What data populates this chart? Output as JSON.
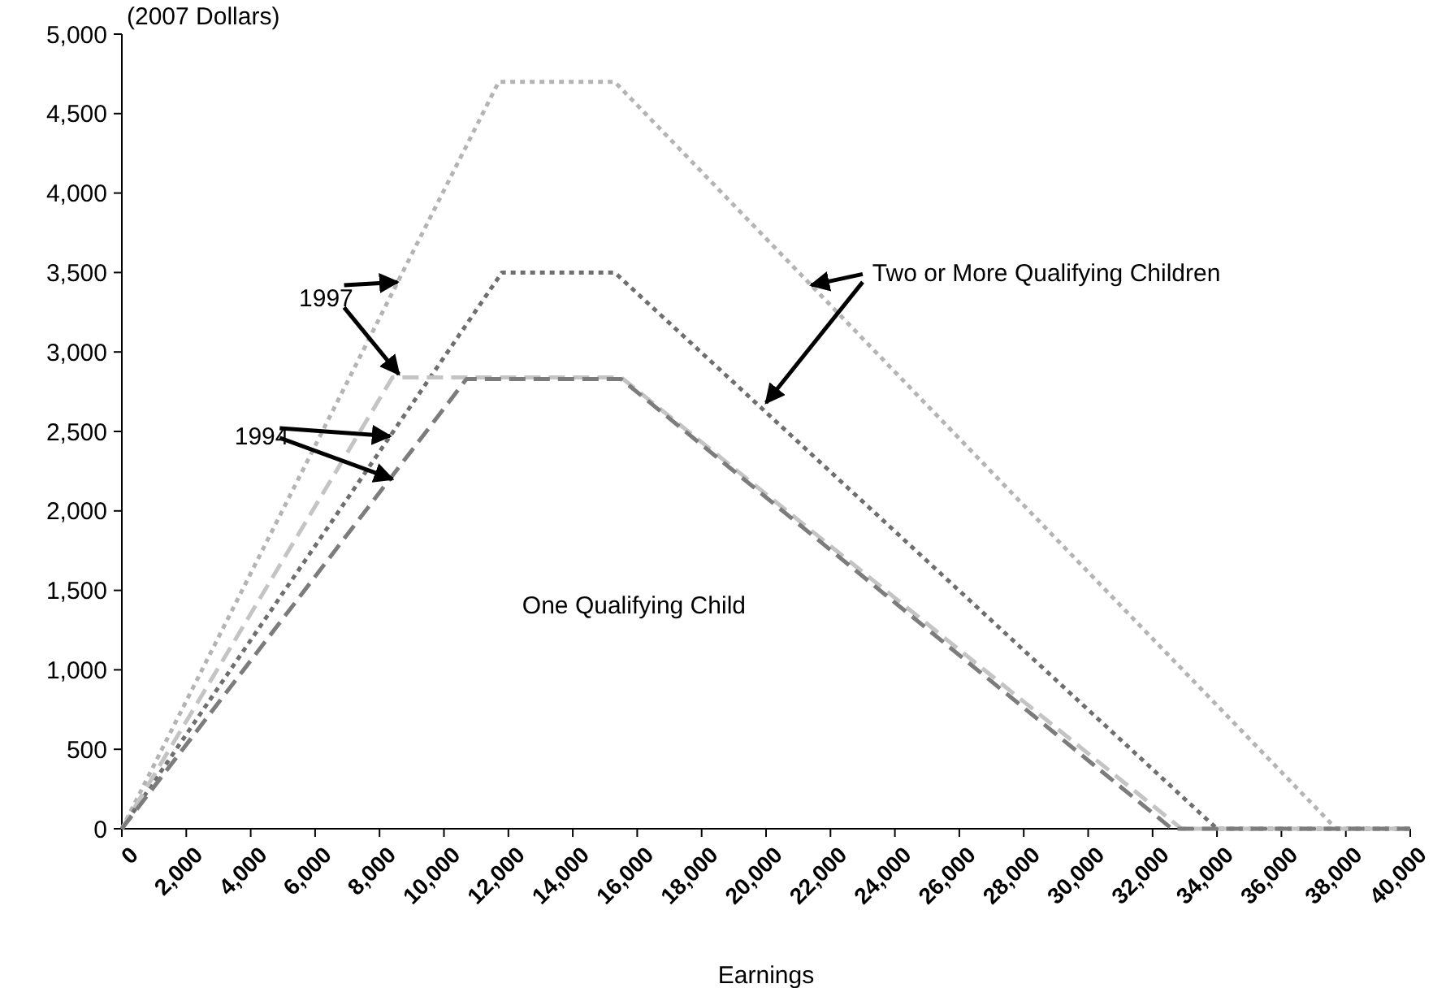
{
  "chart_data": {
    "type": "line",
    "ylabel": "(2007 Dollars)",
    "xlabel": "Earnings",
    "xlim": [
      0,
      40000
    ],
    "xticks": [
      {
        "value": 0,
        "label": "0"
      },
      {
        "value": 2000,
        "label": "2,000"
      },
      {
        "value": 4000,
        "label": "4,000"
      },
      {
        "value": 6000,
        "label": "6,000"
      },
      {
        "value": 8000,
        "label": "8,000"
      },
      {
        "value": 10000,
        "label": "10,000"
      },
      {
        "value": 12000,
        "label": "12,000"
      },
      {
        "value": 14000,
        "label": "14,000"
      },
      {
        "value": 16000,
        "label": "16,000"
      },
      {
        "value": 18000,
        "label": "18,000"
      },
      {
        "value": 20000,
        "label": "20,000"
      },
      {
        "value": 22000,
        "label": "22,000"
      },
      {
        "value": 24000,
        "label": "24,000"
      },
      {
        "value": 26000,
        "label": "26,000"
      },
      {
        "value": 28000,
        "label": "28,000"
      },
      {
        "value": 30000,
        "label": "30,000"
      },
      {
        "value": 32000,
        "label": "32,000"
      },
      {
        "value": 34000,
        "label": "34,000"
      },
      {
        "value": 36000,
        "label": "36,000"
      },
      {
        "value": 38000,
        "label": "38,000"
      },
      {
        "value": 40000,
        "label": "40,000"
      }
    ],
    "ylim": [
      0,
      5000
    ],
    "yticks": [
      {
        "value": 0,
        "label": "0"
      },
      {
        "value": 500,
        "label": "500"
      },
      {
        "value": 1000,
        "label": "1,000"
      },
      {
        "value": 1500,
        "label": "1,500"
      },
      {
        "value": 2000,
        "label": "2,000"
      },
      {
        "value": 2500,
        "label": "2,500"
      },
      {
        "value": 3000,
        "label": "3,000"
      },
      {
        "value": 3500,
        "label": "3,500"
      },
      {
        "value": 4000,
        "label": "4,000"
      },
      {
        "value": 4500,
        "label": "4,500"
      },
      {
        "value": 5000,
        "label": "5,000"
      }
    ],
    "grid": false,
    "series": [
      {
        "color": "#b4b4b4",
        "line_style": "dotted",
        "x": [
          0,
          11700,
          15300,
          37700,
          40000
        ],
        "values": [
          0,
          4700,
          4700,
          0,
          0
        ]
      },
      {
        "color": "#6e6e6e",
        "line_style": "dotted",
        "x": [
          0,
          11800,
          15300,
          34000,
          40000
        ],
        "values": [
          0,
          3500,
          3500,
          0,
          0
        ]
      },
      {
        "color": "#c4c4c4",
        "line_style": "dashed",
        "x": [
          0,
          8400,
          15500,
          32900,
          40000
        ],
        "values": [
          0,
          2840,
          2840,
          0,
          0
        ]
      },
      {
        "color": "#7c7c7c",
        "line_style": "dashed",
        "x": [
          0,
          10700,
          15500,
          32600,
          40000
        ],
        "values": [
          0,
          2830,
          2830,
          0,
          0
        ]
      }
    ],
    "annotations": [
      {
        "text": "1997",
        "x": 8560,
        "y": 3440
      },
      {
        "text": "1994",
        "x": 8330,
        "y": 2470
      },
      {
        "text": "Two or More Qualifying Children",
        "x": 21400,
        "y": 3420
      },
      "One Qualifying Child"
    ]
  }
}
